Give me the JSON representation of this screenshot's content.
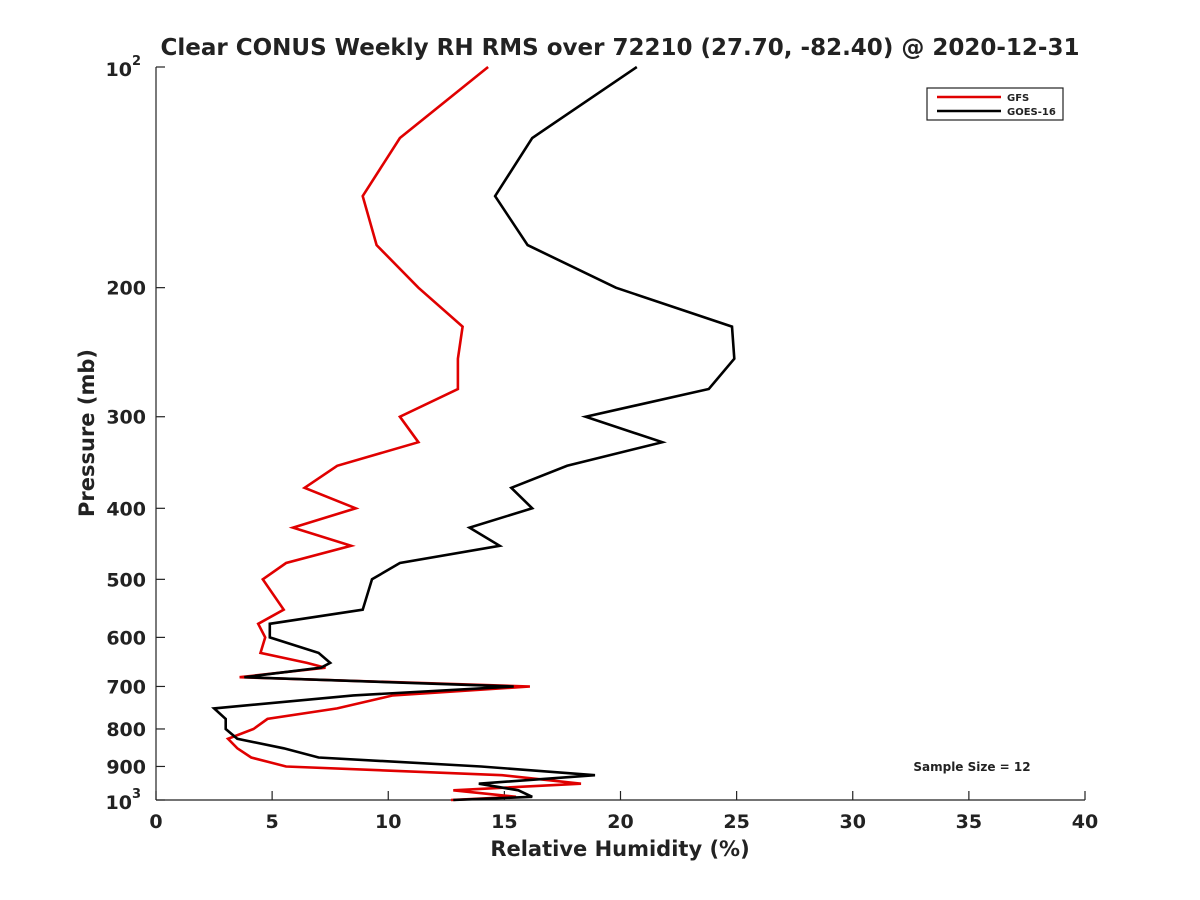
{
  "chart_data": {
    "type": "line",
    "title": "Clear CONUS Weekly RH RMS over 72210 (27.70, -82.40) @ 2020-12-31",
    "xlabel": "Relative Humidity (%)",
    "ylabel": "Pressure (mb)",
    "xlim": [
      0,
      40
    ],
    "ylim": [
      100,
      1000
    ],
    "y_scale": "log",
    "y_reversed": true,
    "grid": false,
    "legend_position": "top-right",
    "annotation": "Sample Size = 12",
    "x_ticks": [
      {
        "value": 0,
        "label": "0"
      },
      {
        "value": 5,
        "label": "5"
      },
      {
        "value": 10,
        "label": "10"
      },
      {
        "value": 15,
        "label": "15"
      },
      {
        "value": 20,
        "label": "20"
      },
      {
        "value": 25,
        "label": "25"
      },
      {
        "value": 30,
        "label": "30"
      },
      {
        "value": 35,
        "label": "35"
      },
      {
        "value": 40,
        "label": "40"
      }
    ],
    "y_ticks": [
      {
        "value": 100,
        "base": "10",
        "exp": "2"
      },
      {
        "value": 200,
        "label": "200"
      },
      {
        "value": 300,
        "label": "300"
      },
      {
        "value": 400,
        "label": "400"
      },
      {
        "value": 500,
        "label": "500"
      },
      {
        "value": 600,
        "label": "600"
      },
      {
        "value": 700,
        "label": "700"
      },
      {
        "value": 800,
        "label": "800"
      },
      {
        "value": 900,
        "label": "900"
      },
      {
        "value": 1000,
        "base": "10",
        "exp": "3"
      }
    ],
    "series": [
      {
        "name": "GFS",
        "color": "#e00000",
        "points": [
          [
            14.3,
            100
          ],
          [
            10.5,
            125
          ],
          [
            8.9,
            150
          ],
          [
            9.5,
            175
          ],
          [
            11.3,
            200
          ],
          [
            13.2,
            226
          ],
          [
            13.0,
            250
          ],
          [
            13.0,
            275
          ],
          [
            10.5,
            300
          ],
          [
            11.3,
            325
          ],
          [
            7.8,
            350
          ],
          [
            6.4,
            375
          ],
          [
            8.6,
            400
          ],
          [
            5.9,
            425
          ],
          [
            8.4,
            450
          ],
          [
            5.6,
            475
          ],
          [
            4.6,
            500
          ],
          [
            5.5,
            550
          ],
          [
            4.4,
            575
          ],
          [
            4.7,
            600
          ],
          [
            4.5,
            630
          ],
          [
            6.5,
            650
          ],
          [
            7.3,
            660
          ],
          [
            3.6,
            680
          ],
          [
            16.1,
            700
          ],
          [
            10.2,
            720
          ],
          [
            7.8,
            750
          ],
          [
            4.8,
            775
          ],
          [
            4.2,
            800
          ],
          [
            3.1,
            825
          ],
          [
            3.5,
            850
          ],
          [
            4.1,
            875
          ],
          [
            5.6,
            900
          ],
          [
            14.9,
            925
          ],
          [
            18.3,
            950
          ],
          [
            12.8,
            970
          ],
          [
            15.5,
            990
          ],
          [
            12.7,
            1000
          ]
        ]
      },
      {
        "name": "GOES-16",
        "color": "#000000",
        "points": [
          [
            20.7,
            100
          ],
          [
            16.2,
            125
          ],
          [
            14.6,
            150
          ],
          [
            16.0,
            175
          ],
          [
            19.8,
            200
          ],
          [
            24.8,
            226
          ],
          [
            24.9,
            250
          ],
          [
            23.8,
            275
          ],
          [
            18.5,
            300
          ],
          [
            21.8,
            325
          ],
          [
            17.7,
            350
          ],
          [
            15.3,
            375
          ],
          [
            16.2,
            400
          ],
          [
            13.5,
            425
          ],
          [
            14.8,
            450
          ],
          [
            10.5,
            475
          ],
          [
            9.3,
            500
          ],
          [
            8.9,
            550
          ],
          [
            4.9,
            575
          ],
          [
            4.9,
            600
          ],
          [
            7.0,
            630
          ],
          [
            7.5,
            650
          ],
          [
            7.1,
            660
          ],
          [
            3.8,
            680
          ],
          [
            15.4,
            700
          ],
          [
            8.5,
            720
          ],
          [
            2.5,
            750
          ],
          [
            3.0,
            775
          ],
          [
            3.0,
            800
          ],
          [
            3.5,
            825
          ],
          [
            5.5,
            850
          ],
          [
            7.0,
            875
          ],
          [
            14.0,
            900
          ],
          [
            18.9,
            925
          ],
          [
            13.9,
            950
          ],
          [
            15.6,
            970
          ],
          [
            16.2,
            990
          ],
          [
            12.8,
            1000
          ]
        ]
      }
    ]
  }
}
